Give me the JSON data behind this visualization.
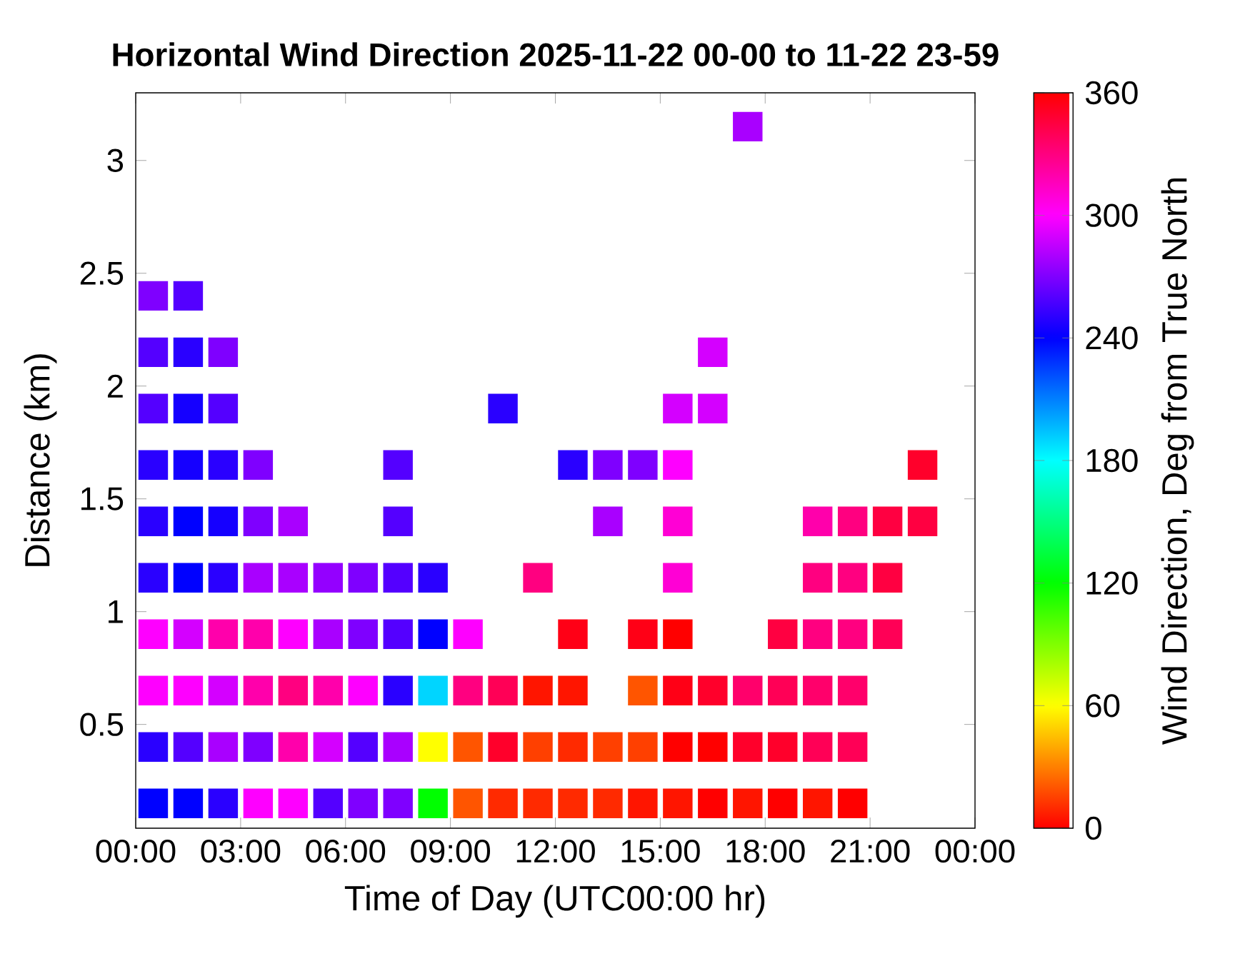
{
  "chart_data": {
    "type": "scatter",
    "title": "Horizontal Wind Direction 2025-11-22 00-00 to 11-22 23-59",
    "xlabel": "Time of Day (UTC00:00 hr)",
    "ylabel": "Distance (km)",
    "clabel": "Wind Direction, Deg from True North",
    "xlim": [
      0,
      24
    ],
    "ylim": [
      0.04,
      3.3
    ],
    "xticks": [
      {
        "value": 0,
        "label": "00:00"
      },
      {
        "value": 3,
        "label": "03:00"
      },
      {
        "value": 6,
        "label": "06:00"
      },
      {
        "value": 9,
        "label": "09:00"
      },
      {
        "value": 12,
        "label": "12:00"
      },
      {
        "value": 15,
        "label": "15:00"
      },
      {
        "value": 18,
        "label": "18:00"
      },
      {
        "value": 21,
        "label": "21:00"
      },
      {
        "value": 24,
        "label": "00:00"
      }
    ],
    "yticks": [
      0.5,
      1,
      1.5,
      2,
      2.5,
      3
    ],
    "clim": [
      0,
      360
    ],
    "cticks": [
      0,
      60,
      120,
      180,
      240,
      300,
      360
    ],
    "marker": "square",
    "grid": false,
    "x": [
      0.5,
      0.5,
      0.5,
      0.5,
      0.5,
      0.5,
      0.5,
      0.5,
      0.5,
      0.5,
      1.5,
      1.5,
      1.5,
      1.5,
      1.5,
      1.5,
      1.5,
      1.5,
      1.5,
      1.5,
      2.5,
      2.5,
      2.5,
      2.5,
      2.5,
      2.5,
      2.5,
      2.5,
      2.5,
      3.5,
      3.5,
      3.5,
      3.5,
      3.5,
      3.5,
      3.5,
      4.5,
      4.5,
      4.5,
      4.5,
      4.5,
      4.5,
      5.5,
      5.5,
      5.5,
      5.5,
      5.5,
      6.5,
      6.5,
      6.5,
      6.5,
      6.5,
      7.5,
      7.5,
      7.5,
      7.5,
      7.5,
      7.5,
      7.5,
      8.5,
      8.5,
      8.5,
      8.5,
      8.5,
      9.5,
      9.5,
      9.5,
      9.5,
      10.5,
      10.5,
      10.5,
      10.5,
      11.5,
      11.5,
      11.5,
      11.5,
      12.5,
      12.5,
      12.5,
      12.5,
      12.5,
      13.5,
      13.5,
      13.5,
      13.5,
      14.5,
      14.5,
      14.5,
      14.5,
      14.5,
      15.5,
      15.5,
      15.5,
      15.5,
      15.5,
      15.5,
      15.5,
      15.5,
      16.5,
      16.5,
      16.5,
      16.5,
      16.5,
      17.5,
      17.5,
      17.5,
      17.5,
      18.5,
      18.5,
      18.5,
      18.5,
      19.5,
      19.5,
      19.5,
      19.5,
      19.5,
      19.5,
      20.5,
      20.5,
      20.5,
      20.5,
      20.5,
      20.5,
      21.5,
      21.5,
      21.5,
      22.5,
      22.5
    ],
    "values": [
      0.15,
      0.4,
      0.65,
      0.9,
      1.15,
      1.4,
      1.65,
      1.9,
      2.15,
      2.4,
      0.15,
      0.4,
      0.65,
      0.9,
      1.15,
      1.4,
      1.65,
      1.9,
      2.15,
      2.4,
      0.15,
      0.4,
      0.65,
      0.9,
      1.15,
      1.4,
      1.65,
      1.9,
      2.15,
      0.15,
      0.4,
      0.65,
      0.9,
      1.15,
      1.4,
      1.65,
      0.15,
      0.4,
      0.65,
      0.9,
      1.15,
      1.4,
      0.15,
      0.4,
      0.65,
      0.9,
      1.15,
      0.15,
      0.4,
      0.65,
      0.9,
      1.15,
      0.15,
      0.4,
      0.65,
      0.9,
      1.15,
      1.4,
      1.65,
      0.15,
      0.4,
      0.65,
      0.9,
      1.15,
      0.15,
      0.4,
      0.65,
      0.9,
      0.15,
      0.4,
      0.65,
      1.9,
      0.15,
      0.4,
      0.65,
      1.15,
      0.15,
      0.4,
      0.65,
      0.9,
      1.65,
      0.15,
      0.4,
      1.4,
      1.65,
      0.15,
      0.4,
      0.65,
      0.9,
      1.65,
      0.15,
      0.4,
      0.65,
      0.9,
      1.15,
      1.4,
      1.65,
      1.9,
      0.15,
      0.4,
      0.65,
      1.9,
      2.15,
      0.15,
      0.4,
      0.65,
      3.15,
      0.15,
      0.4,
      0.65,
      0.9,
      0.15,
      0.4,
      0.65,
      0.9,
      1.15,
      1.4,
      0.15,
      0.4,
      0.65,
      0.9,
      1.15,
      1.4,
      0.9,
      1.15,
      1.4,
      1.4,
      1.65
    ],
    "cvalues": [
      240,
      250,
      300,
      300,
      250,
      250,
      250,
      260,
      260,
      270,
      240,
      260,
      300,
      290,
      240,
      240,
      245,
      245,
      250,
      260,
      250,
      280,
      290,
      320,
      250,
      245,
      250,
      260,
      270,
      300,
      270,
      320,
      320,
      280,
      270,
      270,
      300,
      320,
      330,
      300,
      280,
      280,
      260,
      290,
      320,
      280,
      275,
      270,
      260,
      300,
      270,
      270,
      270,
      280,
      250,
      260,
      260,
      260,
      260,
      120,
      60,
      190,
      240,
      250,
      20,
      20,
      330,
      300,
      10,
      350,
      340,
      250,
      10,
      15,
      5,
      330,
      10,
      10,
      5,
      355,
      250,
      10,
      15,
      280,
      270,
      5,
      15,
      20,
      355,
      270,
      5,
      0,
      355,
      0,
      310,
      310,
      300,
      290,
      0,
      0,
      350,
      290,
      290,
      5,
      350,
      335,
      280,
      0,
      350,
      340,
      345,
      5,
      340,
      335,
      330,
      330,
      320,
      0,
      340,
      335,
      330,
      330,
      330,
      340,
      345,
      345,
      345,
      350
    ]
  }
}
